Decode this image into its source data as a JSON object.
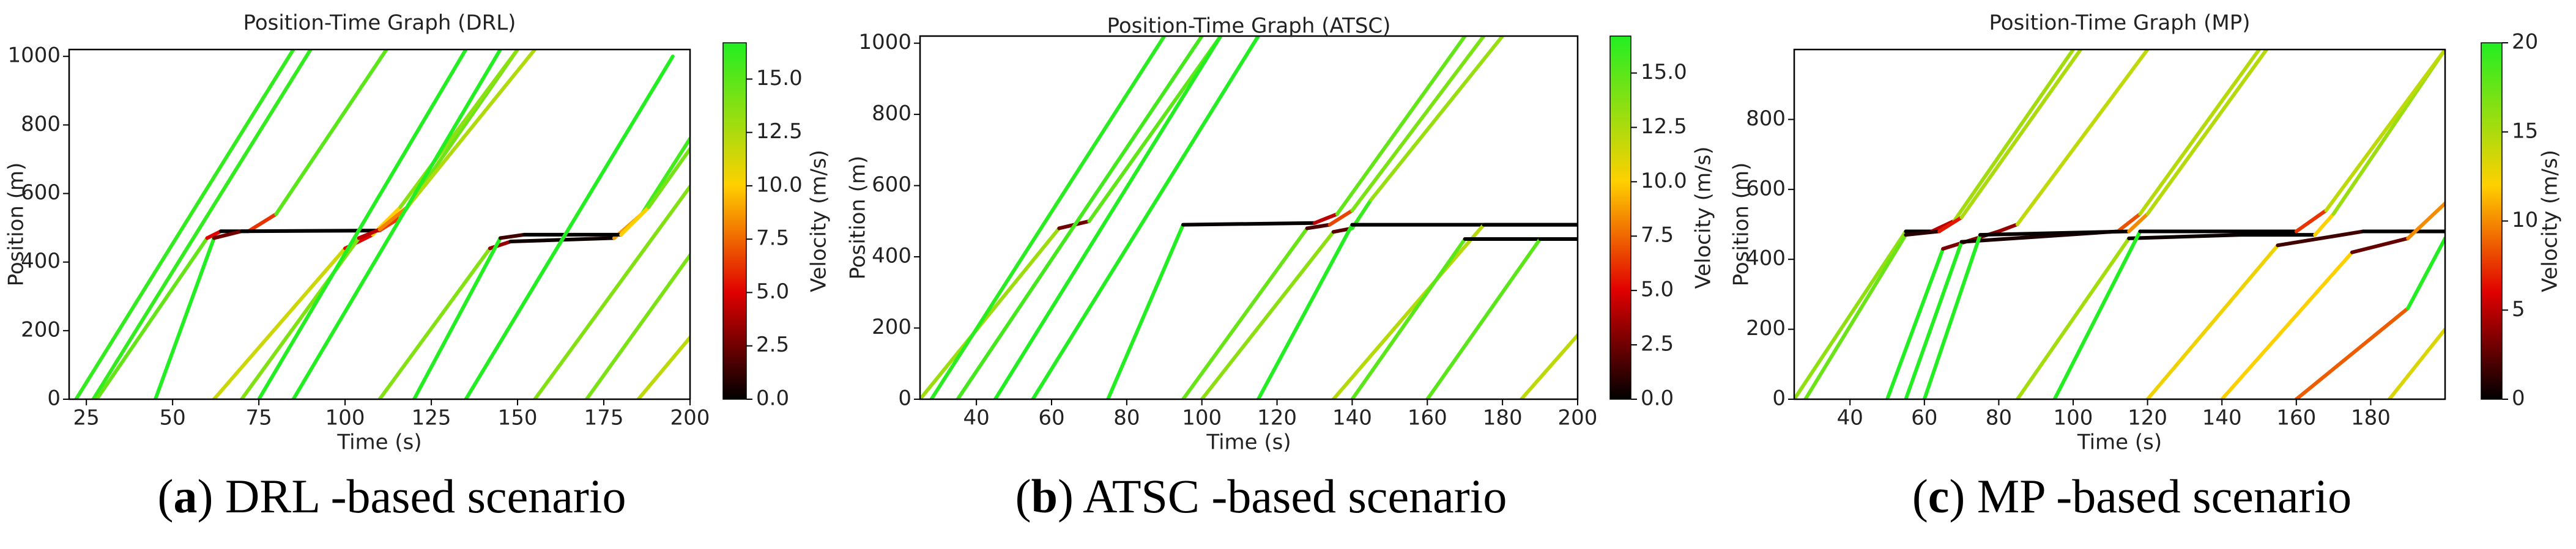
{
  "chart_data": [
    {
      "type": "line",
      "title": "Position-Time Graph (DRL)",
      "x_label": "Time (s)",
      "y_label": "Position (m)",
      "colorbar_label": "Velocity (m/s)",
      "xlim": [
        20,
        200
      ],
      "xticks": [
        25,
        50,
        75,
        100,
        125,
        150,
        175,
        200
      ],
      "ylim": [
        0,
        1020
      ],
      "yticks": [
        0,
        200,
        400,
        600,
        800,
        1000
      ],
      "clim": [
        0,
        16.7
      ],
      "cticks": [
        {
          "value": 0,
          "label": "0.0"
        },
        {
          "value": 2.5,
          "label": "2.5"
        },
        {
          "value": 5,
          "label": "5.0"
        },
        {
          "value": 7.5,
          "label": "7.5"
        },
        {
          "value": 10,
          "label": "10.0"
        },
        {
          "value": 12.5,
          "label": "12.5"
        },
        {
          "value": 15,
          "label": "15.0"
        }
      ],
      "caption": [
        "(",
        "a",
        ") DRL -based scenario"
      ],
      "series": [
        {
          "x": [
            22,
            85
          ],
          "values": [
            0,
            1020
          ]
        },
        {
          "x": [
            27,
            90
          ],
          "values": [
            0,
            1020
          ]
        },
        {
          "x": [
            28,
            60,
            64,
            72,
            80,
            112
          ],
          "values": [
            0,
            470,
            490,
            490,
            540,
            1020
          ]
        },
        {
          "x": [
            45,
            62,
            70,
            110,
            116,
            150
          ],
          "values": [
            0,
            470,
            490,
            492,
            530,
            1020
          ]
        },
        {
          "x": [
            62,
            100,
            108,
            116,
            150
          ],
          "values": [
            0,
            440,
            480,
            560,
            1020
          ]
        },
        {
          "x": [
            70,
            104,
            110,
            118,
            155
          ],
          "values": [
            0,
            470,
            495,
            560,
            1020
          ]
        },
        {
          "x": [
            75,
            135
          ],
          "values": [
            0,
            1020
          ]
        },
        {
          "x": [
            85,
            145
          ],
          "values": [
            0,
            1020
          ]
        },
        {
          "x": [
            110,
            142,
            148,
            178,
            186,
            200
          ],
          "values": [
            0,
            440,
            460,
            470,
            540,
            760
          ]
        },
        {
          "x": [
            120,
            145,
            152,
            180,
            188,
            200
          ],
          "values": [
            0,
            470,
            480,
            480,
            560,
            730
          ]
        },
        {
          "x": [
            135,
            195
          ],
          "values": [
            0,
            1000
          ]
        },
        {
          "x": [
            155,
            200
          ],
          "values": [
            0,
            620
          ]
        },
        {
          "x": [
            170,
            200
          ],
          "values": [
            0,
            420
          ]
        },
        {
          "x": [
            185,
            200
          ],
          "values": [
            0,
            180
          ]
        }
      ]
    },
    {
      "type": "line",
      "title": "Position-Time Graph (ATSC)",
      "x_label": "Time (s)",
      "y_label": "Position (m)",
      "colorbar_label": "Velocity (m/s)",
      "xlim": [
        25,
        200
      ],
      "xticks": [
        40,
        60,
        80,
        100,
        120,
        140,
        160,
        180,
        200
      ],
      "ylim": [
        0,
        1020
      ],
      "yticks": [
        0,
        200,
        400,
        600,
        800,
        1000
      ],
      "clim": [
        0,
        16.7
      ],
      "cticks": [
        {
          "value": 0,
          "label": "0.0"
        },
        {
          "value": 2.5,
          "label": "2.5"
        },
        {
          "value": 5,
          "label": "5.0"
        },
        {
          "value": 7.5,
          "label": "7.5"
        },
        {
          "value": 10,
          "label": "10.0"
        },
        {
          "value": 12.5,
          "label": "12.5"
        },
        {
          "value": 15,
          "label": "15.0"
        }
      ],
      "caption": [
        "(",
        "b",
        ") ATSC -based scenario"
      ],
      "series": [
        {
          "x": [
            25,
            62,
            66,
            70,
            105
          ],
          "values": [
            0,
            480,
            490,
            500,
            1020
          ]
        },
        {
          "x": [
            28,
            90
          ],
          "values": [
            0,
            1020
          ]
        },
        {
          "x": [
            35,
            100
          ],
          "values": [
            0,
            1020
          ]
        },
        {
          "x": [
            45,
            105
          ],
          "values": [
            0,
            1020
          ]
        },
        {
          "x": [
            55,
            115
          ],
          "values": [
            0,
            1020
          ]
        },
        {
          "x": [
            75,
            95,
            130,
            136,
            170
          ],
          "values": [
            0,
            490,
            495,
            520,
            1020
          ]
        },
        {
          "x": [
            95,
            128,
            134,
            140,
            175
          ],
          "values": [
            0,
            480,
            490,
            530,
            1020
          ]
        },
        {
          "x": [
            100,
            135,
            140,
            145,
            180
          ],
          "values": [
            0,
            470,
            480,
            560,
            1020
          ]
        },
        {
          "x": [
            115,
            140,
            200
          ],
          "values": [
            0,
            490,
            490
          ]
        },
        {
          "x": [
            135,
            175,
            200
          ],
          "values": [
            0,
            490,
            490
          ]
        },
        {
          "x": [
            140,
            170,
            200
          ],
          "values": [
            0,
            450,
            450
          ]
        },
        {
          "x": [
            160,
            190,
            200
          ],
          "values": [
            0,
            450,
            450
          ]
        },
        {
          "x": [
            185,
            200
          ],
          "values": [
            0,
            180
          ]
        }
      ]
    },
    {
      "type": "line",
      "title": "Position-Time Graph (MP)",
      "x_label": "Time (s)",
      "y_label": "Position (m)",
      "colorbar_label": "Velocity (m/s)",
      "xlim": [
        25,
        200
      ],
      "xticks": [
        40,
        60,
        80,
        100,
        120,
        140,
        160,
        180
      ],
      "ylim": [
        0,
        1000
      ],
      "yticks": [
        0,
        200,
        400,
        600,
        800
      ],
      "clim": [
        0,
        20
      ],
      "cticks": [
        0,
        5,
        10,
        15,
        20
      ],
      "caption": [
        "(",
        "c",
        ") MP -based scenario"
      ],
      "series": [
        {
          "x": [
            25,
            55,
            62,
            68,
            100
          ],
          "values": [
            0,
            480,
            480,
            510,
            1000
          ]
        },
        {
          "x": [
            28,
            55,
            64,
            70,
            102
          ],
          "values": [
            0,
            470,
            480,
            520,
            1000
          ]
        },
        {
          "x": [
            50,
            65,
            80,
            85,
            120
          ],
          "values": [
            0,
            430,
            480,
            500,
            1000
          ]
        },
        {
          "x": [
            55,
            70,
            112,
            118,
            150
          ],
          "values": [
            0,
            450,
            480,
            530,
            1000
          ]
        },
        {
          "x": [
            60,
            75,
            115,
            120,
            152
          ],
          "values": [
            0,
            470,
            480,
            530,
            1000
          ]
        },
        {
          "x": [
            85,
            115,
            145,
            165,
            170,
            200
          ],
          "values": [
            0,
            460,
            470,
            470,
            530,
            1000
          ]
        },
        {
          "x": [
            95,
            118,
            140,
            160,
            168,
            200
          ],
          "values": [
            0,
            480,
            480,
            480,
            540,
            1000
          ]
        },
        {
          "x": [
            120,
            155,
            178,
            200
          ],
          "values": [
            0,
            440,
            480,
            480
          ]
        },
        {
          "x": [
            140,
            175,
            190,
            200
          ],
          "values": [
            0,
            420,
            460,
            560
          ]
        },
        {
          "x": [
            160,
            190,
            200
          ],
          "values": [
            0,
            260,
            460
          ]
        },
        {
          "x": [
            185,
            200
          ],
          "values": [
            0,
            200
          ]
        }
      ]
    }
  ]
}
